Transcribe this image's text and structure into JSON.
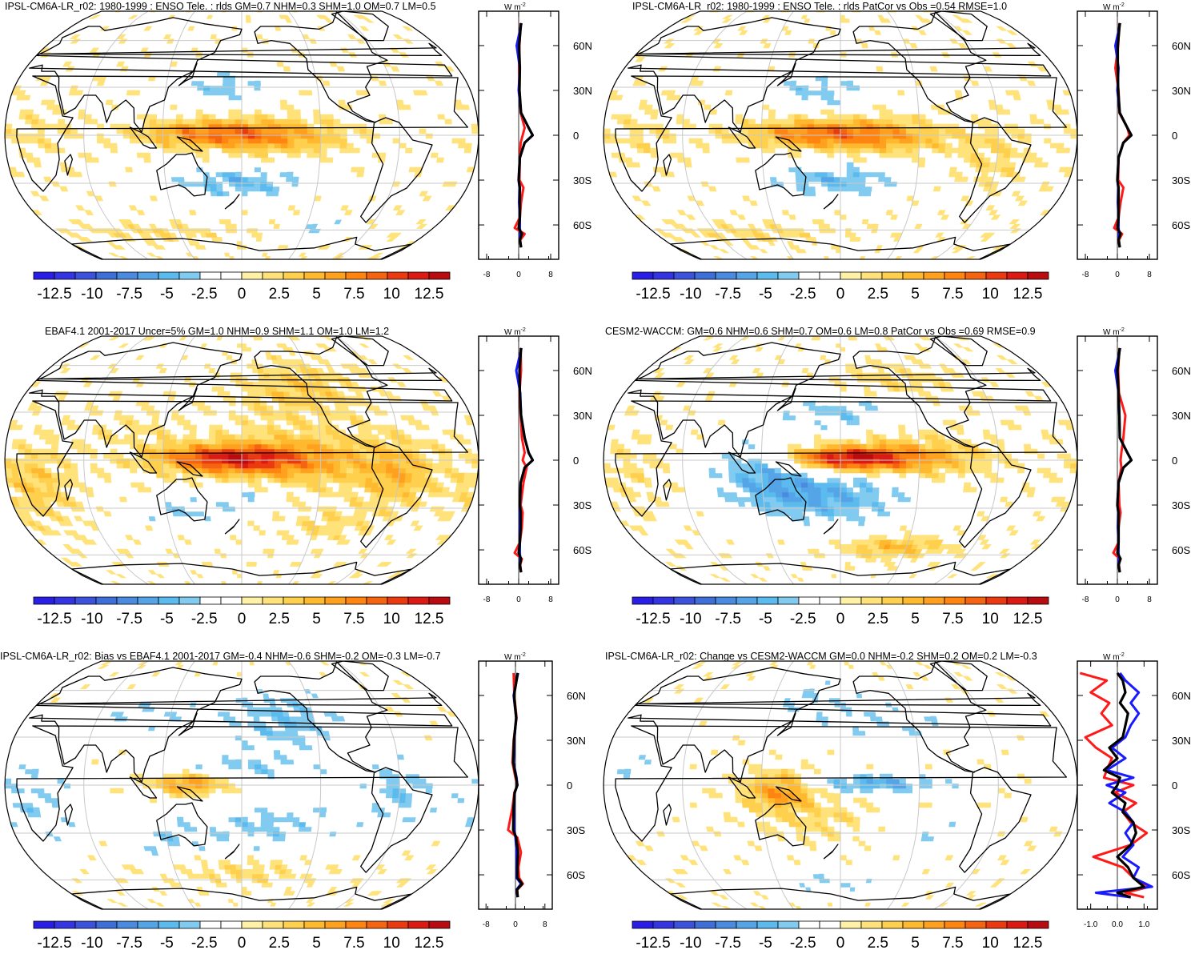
{
  "figure": {
    "lat_ticks": [
      "60N",
      "30N",
      "0",
      "30S",
      "60S"
    ],
    "lat_tick_values": [
      60,
      30,
      0,
      -30,
      -60
    ],
    "colorbar_labels": [
      "-12.5",
      "-10",
      "-7.5",
      "-5",
      "-2.5",
      "0",
      "2.5",
      "5",
      "7.5",
      "10",
      "12.5"
    ],
    "colorbar_colors": [
      "#2a1ee6",
      "#3434e2",
      "#3c52dc",
      "#3e6fd8",
      "#4a8ae0",
      "#55a4e8",
      "#5cbbee",
      "#82cbf0",
      "#ffffff",
      "#ffffff",
      "#fff2a6",
      "#ffe27a",
      "#ffd04e",
      "#ffb92e",
      "#ffa01e",
      "#ff8410",
      "#f56410",
      "#ec3a10",
      "#dc1a14",
      "#b80c10"
    ],
    "series_colors": {
      "red": "#ff1a1a",
      "blue": "#1a1aff",
      "black": "#000000"
    }
  },
  "panels": [
    {
      "title": "IPSL-CM6A-LR_r02: 1980-1999 : ENSO Tele. : rlds GM=0.7 NHM=0.3 SHM=1.0 OM=0.7 LM=0.5",
      "unit": "W m",
      "unit_exp": "-2",
      "profile_ticks": [
        "-8",
        "0",
        "8"
      ]
    },
    {
      "title": "IPSL-CM6A-LR_r02: 1980-1999 : ENSO Tele. : rlds PatCor vs Obs =0.54 RMSE=1.0",
      "unit": "W m",
      "unit_exp": "-2",
      "profile_ticks": [
        "-8",
        "0",
        "8"
      ]
    },
    {
      "title": "EBAF4.1 2001-2017 Uncer=5% GM=1.0 NHM=0.9 SHM=1.1 OM=1.0 LM=1.2",
      "unit": "W m",
      "unit_exp": "-2",
      "profile_ticks": [
        "-8",
        "0",
        "8"
      ]
    },
    {
      "title": "CESM2-WACCM: GM=0.6 NHM=0.6 SHM=0.7 OM=0.6 LM=0.8 PatCor vs Obs =0.69 RMSE=0.9",
      "unit": "W m",
      "unit_exp": "-2",
      "profile_ticks": [
        "-8",
        "0",
        "8"
      ]
    },
    {
      "title": "IPSL-CM6A-LR_r02: Bias vs EBAF4.1 2001-2017 GM=-0.4 NHM=-0.6 SHM=-0.2 OM=-0.3 LM=-0.7",
      "unit": "W m",
      "unit_exp": "-2",
      "profile_ticks": [
        "-8",
        "0",
        "8"
      ]
    },
    {
      "title": "IPSL-CM6A-LR_r02: Change vs CESM2-WACCM GM=0.0 NHM=-0.2 SHM=0.2 OM=0.2 LM=-0.3",
      "unit": "W m",
      "unit_exp": "-2",
      "profile_ticks": [
        "-1.0",
        "0.0",
        "1.0"
      ]
    }
  ],
  "chart_data": [
    {
      "type": "heatmap",
      "title": "IPSL-CM6A-LR_r02: 1980-1999 : ENSO Tele. : rlds GM=0.7 NHM=0.3 SHM=1.0 OM=0.7 LM=0.5",
      "colorbar": {
        "min": -13.75,
        "max": 13.75,
        "levels": [
          -12.5,
          -10,
          -7.5,
          -5,
          -2.5,
          0,
          2.5,
          5,
          7.5,
          10,
          12.5
        ]
      },
      "features": [
        {
          "lon": 155,
          "lat": 1,
          "amp": 6,
          "sx": 40,
          "sy": 6
        },
        {
          "lon": 210,
          "lat": -1,
          "amp": 4,
          "sx": 40,
          "sy": 8
        },
        {
          "lon": 175,
          "lat": -30,
          "amp": -4,
          "sx": 35,
          "sy": 7
        },
        {
          "lon": 165,
          "lat": 30,
          "amp": -3,
          "sx": 25,
          "sy": 7
        },
        {
          "lon": 255,
          "lat": -58,
          "amp": -2.5,
          "sx": 20,
          "sy": 4
        },
        {
          "lon": 100,
          "lat": -62,
          "amp": 2,
          "sx": 60,
          "sy": 5
        },
        {
          "lon": 25,
          "lat": 0,
          "amp": 1.5,
          "sx": 25,
          "sy": 15
        }
      ],
      "profile": {
        "lat": [
          75,
          60,
          45,
          30,
          15,
          5,
          0,
          -5,
          -15,
          -30,
          -35,
          -45,
          -55,
          -62,
          -66,
          -70,
          -75
        ],
        "red": [
          0.5,
          0.2,
          0.1,
          0.2,
          0.5,
          1.5,
          1.0,
          0.5,
          0.3,
          0.2,
          1.2,
          0.6,
          0.3,
          -1.0,
          1.5,
          0.4,
          0.6
        ],
        "blue": [
          0.7,
          -0.5,
          0.3,
          0.0,
          0.6,
          2.5,
          3.5,
          1.5,
          0.3,
          0.0,
          0.2,
          0.1,
          0.3,
          0.3,
          0.4,
          0.3,
          0.6
        ],
        "black": [
          0.6,
          0.1,
          0.3,
          0.2,
          0.6,
          2.5,
          3.5,
          1.5,
          0.3,
          0.0,
          0.3,
          0.3,
          0.3,
          0.0,
          0.8,
          0.3,
          0.6
        ],
        "xlim": [
          -10,
          10
        ]
      }
    },
    {
      "type": "heatmap",
      "title": "IPSL-CM6A-LR_r02: 1980-1999 : ENSO Tele. : rlds PatCor vs Obs =0.54 RMSE=1.0",
      "colorbar": {
        "min": -13.75,
        "max": 13.75,
        "levels": [
          -12.5,
          -10,
          -7.5,
          -5,
          -2.5,
          0,
          2.5,
          5,
          7.5,
          10,
          12.5
        ]
      },
      "features": [
        {
          "lon": 160,
          "lat": 1,
          "amp": 6,
          "sx": 40,
          "sy": 6
        },
        {
          "lon": 215,
          "lat": -1,
          "amp": 4,
          "sx": 40,
          "sy": 8
        },
        {
          "lon": 175,
          "lat": -28,
          "amp": -4,
          "sx": 35,
          "sy": 7
        },
        {
          "lon": 160,
          "lat": 28,
          "amp": -3,
          "sx": 25,
          "sy": 7
        },
        {
          "lon": 100,
          "lat": -62,
          "amp": 2,
          "sx": 60,
          "sy": 5
        },
        {
          "lon": 300,
          "lat": -15,
          "amp": 2,
          "sx": 20,
          "sy": 15
        },
        {
          "lon": 25,
          "lat": 0,
          "amp": 1.5,
          "sx": 25,
          "sy": 15
        }
      ],
      "profile": {
        "lat": [
          75,
          60,
          45,
          30,
          15,
          5,
          0,
          -5,
          -15,
          -30,
          -35,
          -45,
          -55,
          -62,
          -66,
          -70,
          -75
        ],
        "red": [
          0.5,
          0.2,
          -0.5,
          0.3,
          0.5,
          2.5,
          3.0,
          1.5,
          0.3,
          0.2,
          1.5,
          0.8,
          0.3,
          -0.8,
          1.2,
          0.4,
          0.6
        ],
        "blue": [
          0.7,
          -0.5,
          0.3,
          0.0,
          0.6,
          2.5,
          3.5,
          1.5,
          0.3,
          0.0,
          0.2,
          0.1,
          0.3,
          0.3,
          0.4,
          0.3,
          0.6
        ],
        "black": [
          0.6,
          0.1,
          0.1,
          0.2,
          0.6,
          2.5,
          3.5,
          1.5,
          0.3,
          0.0,
          0.3,
          0.3,
          0.3,
          0.0,
          0.8,
          0.3,
          0.6
        ],
        "xlim": [
          -10,
          10
        ]
      }
    },
    {
      "type": "heatmap",
      "title": "EBAF4.1 2001-2017 Uncer=5% GM=1.0 NHM=0.9 SHM=1.1 OM=1.0 LM=1.2",
      "colorbar": {
        "min": -13.75,
        "max": 13.75,
        "levels": [
          -12.5,
          -10,
          -7.5,
          -5,
          -2.5,
          0,
          2.5,
          5,
          7.5,
          10,
          12.5
        ]
      },
      "features": [
        {
          "lon": 170,
          "lat": 1,
          "amp": 9,
          "sx": 40,
          "sy": 6
        },
        {
          "lon": 225,
          "lat": 0,
          "amp": 4,
          "sx": 50,
          "sy": 14
        },
        {
          "lon": 230,
          "lat": 45,
          "amp": 3,
          "sx": 40,
          "sy": 14
        },
        {
          "lon": 180,
          "lat": -25,
          "amp": -2.5,
          "sx": 25,
          "sy": 7
        },
        {
          "lon": 130,
          "lat": -32,
          "amp": -2.5,
          "sx": 20,
          "sy": 6
        },
        {
          "lon": 300,
          "lat": -10,
          "amp": 3.5,
          "sx": 20,
          "sy": 15
        },
        {
          "lon": 20,
          "lat": -15,
          "amp": 3,
          "sx": 25,
          "sy": 20
        },
        {
          "lon": 250,
          "lat": -40,
          "amp": 2,
          "sx": 30,
          "sy": 8
        },
        {
          "lon": 100,
          "lat": 20,
          "amp": 1.5,
          "sx": 30,
          "sy": 10
        }
      ],
      "profile": {
        "lat": [
          75,
          60,
          45,
          30,
          15,
          5,
          0,
          -5,
          -15,
          -30,
          -35,
          -45,
          -55,
          -62,
          -66,
          -70,
          -75
        ],
        "red": [
          0.5,
          0.6,
          0.2,
          0.5,
          0.8,
          1.5,
          1.0,
          2.0,
          1.2,
          0.5,
          1.0,
          0.8,
          0.3,
          -1.0,
          0.8,
          0.4,
          0.6
        ],
        "blue": [
          0.7,
          -0.6,
          0.4,
          0.6,
          1.5,
          2.5,
          3.5,
          1.5,
          0.5,
          0.3,
          0.3,
          0.3,
          0.3,
          0.3,
          0.4,
          0.3,
          0.6
        ],
        "black": [
          0.6,
          0.2,
          0.3,
          0.6,
          1.5,
          2.5,
          3.5,
          1.5,
          0.5,
          0.3,
          0.5,
          0.5,
          0.3,
          0.0,
          0.6,
          0.3,
          0.6
        ],
        "xlim": [
          -10,
          10
        ]
      }
    },
    {
      "type": "heatmap",
      "title": "CESM2-WACCM: GM=0.6 NHM=0.6 SHM=0.7 OM=0.6 LM=0.8 PatCor vs Obs =0.69 RMSE=0.9",
      "colorbar": {
        "min": -13.75,
        "max": 13.75,
        "levels": [
          -12.5,
          -10,
          -7.5,
          -5,
          -2.5,
          0,
          2.5,
          5,
          7.5,
          10,
          12.5
        ]
      },
      "features": [
        {
          "lon": 185,
          "lat": 1,
          "amp": 10,
          "sx": 35,
          "sy": 5
        },
        {
          "lon": 235,
          "lat": 2,
          "amp": 4,
          "sx": 45,
          "sy": 10
        },
        {
          "lon": 165,
          "lat": -22,
          "amp": -5,
          "sx": 45,
          "sy": 12
        },
        {
          "lon": 120,
          "lat": -5,
          "amp": -3.5,
          "sx": 25,
          "sy": 12
        },
        {
          "lon": 180,
          "lat": 30,
          "amp": -3,
          "sx": 35,
          "sy": 8
        },
        {
          "lon": 230,
          "lat": -55,
          "amp": 4,
          "sx": 35,
          "sy": 5
        },
        {
          "lon": 230,
          "lat": 50,
          "amp": 2,
          "sx": 35,
          "sy": 10
        },
        {
          "lon": 20,
          "lat": -10,
          "amp": 1.5,
          "sx": 25,
          "sy": 20
        }
      ],
      "profile": {
        "lat": [
          75,
          60,
          45,
          30,
          15,
          5,
          0,
          -5,
          -15,
          -30,
          -35,
          -45,
          -55,
          -62,
          -66,
          -70,
          -75
        ],
        "red": [
          0.5,
          0.2,
          0.4,
          2.0,
          1.5,
          1.0,
          0.8,
          1.0,
          0.3,
          0.5,
          0.8,
          0.3,
          0.3,
          -1.0,
          0.6,
          0.4,
          0.6
        ],
        "blue": [
          0.7,
          -0.5,
          0.3,
          0.5,
          0.6,
          2.5,
          3.5,
          1.5,
          0.3,
          0.0,
          0.2,
          0.1,
          0.3,
          0.3,
          0.4,
          0.3,
          0.6
        ],
        "black": [
          0.6,
          0.0,
          0.3,
          0.5,
          0.6,
          2.5,
          3.5,
          1.5,
          0.3,
          0.0,
          0.3,
          0.3,
          0.3,
          0.0,
          0.8,
          0.3,
          0.6
        ],
        "xlim": [
          -10,
          10
        ]
      }
    },
    {
      "type": "heatmap",
      "title": "IPSL-CM6A-LR_r02: Bias vs EBAF4.1 2001-2017 GM=-0.4 NHM=-0.6 SHM=-0.2 OM=-0.3 LM=-0.7",
      "colorbar": {
        "min": -13.75,
        "max": 13.75,
        "levels": [
          -12.5,
          -10,
          -7.5,
          -5,
          -2.5,
          0,
          2.5,
          5,
          7.5,
          10,
          12.5
        ]
      },
      "features": [
        {
          "lon": 140,
          "lat": 1,
          "amp": 6,
          "sx": 20,
          "sy": 5
        },
        {
          "lon": 215,
          "lat": 40,
          "amp": -3.5,
          "sx": 35,
          "sy": 15
        },
        {
          "lon": 180,
          "lat": 10,
          "amp": -2.5,
          "sx": 40,
          "sy": 6
        },
        {
          "lon": 200,
          "lat": -25,
          "amp": -3,
          "sx": 40,
          "sy": 10
        },
        {
          "lon": 300,
          "lat": -5,
          "amp": -3,
          "sx": 20,
          "sy": 15
        },
        {
          "lon": 20,
          "lat": -10,
          "amp": -2.5,
          "sx": 25,
          "sy": 20
        },
        {
          "lon": 120,
          "lat": -35,
          "amp": -2.5,
          "sx": 20,
          "sy": 8
        },
        {
          "lon": 180,
          "lat": -55,
          "amp": 2,
          "sx": 50,
          "sy": 6
        },
        {
          "lon": 100,
          "lat": 45,
          "amp": -2,
          "sx": 35,
          "sy": 10
        }
      ],
      "profile": {
        "lat": [
          75,
          60,
          45,
          30,
          15,
          5,
          0,
          -5,
          -15,
          -30,
          -35,
          -45,
          -55,
          -62,
          -66,
          -70,
          -75
        ],
        "red": [
          -0.5,
          -0.3,
          0.3,
          -0.5,
          -0.8,
          0.0,
          0.5,
          -0.3,
          -0.8,
          -2.0,
          0.5,
          1.5,
          0.8,
          1.0,
          2.0,
          0.5,
          0.6
        ],
        "blue": [
          0.7,
          -0.5,
          0.2,
          -0.3,
          -0.5,
          0.3,
          0.5,
          -0.2,
          -0.4,
          -0.3,
          0.0,
          0.3,
          0.3,
          0.3,
          1.5,
          0.3,
          0.6
        ],
        "black": [
          0.6,
          -0.4,
          0.2,
          -0.4,
          -0.6,
          0.2,
          0.5,
          -0.2,
          -0.5,
          -0.6,
          0.2,
          0.7,
          0.5,
          0.5,
          1.8,
          0.4,
          0.6
        ],
        "xlim": [
          -10,
          10
        ]
      }
    },
    {
      "type": "heatmap",
      "title": "IPSL-CM6A-LR_r02: Change vs CESM2-WACCM GM=0.0 NHM=-0.2 SHM=0.2 OM=0.2 LM=-0.3",
      "colorbar": {
        "min": -13.75,
        "max": 13.75,
        "levels": [
          -12.5,
          -10,
          -7.5,
          -5,
          -2.5,
          0,
          2.5,
          5,
          7.5,
          10,
          12.5
        ]
      },
      "features": [
        {
          "lon": 135,
          "lat": -3,
          "amp": 6,
          "sx": 20,
          "sy": 8
        },
        {
          "lon": 205,
          "lat": 1,
          "amp": -5,
          "sx": 40,
          "sy": 4
        },
        {
          "lon": 165,
          "lat": -22,
          "amp": 2,
          "sx": 35,
          "sy": 10
        },
        {
          "lon": 170,
          "lat": -62,
          "amp": -2,
          "sx": 50,
          "sy": 5
        },
        {
          "lon": 220,
          "lat": 38,
          "amp": -2,
          "sx": 40,
          "sy": 10
        },
        {
          "lon": 250,
          "lat": -30,
          "amp": -2,
          "sx": 25,
          "sy": 8
        },
        {
          "lon": 150,
          "lat": 55,
          "amp": -2,
          "sx": 35,
          "sy": 10
        },
        {
          "lon": 20,
          "lat": 10,
          "amp": -1.5,
          "sx": 25,
          "sy": 20
        }
      ],
      "profile": {
        "lat": [
          75,
          70,
          62,
          55,
          48,
          40,
          32,
          25,
          18,
          10,
          5,
          0,
          -5,
          -12,
          -18,
          -25,
          -32,
          -40,
          -48,
          -55,
          -62,
          -68,
          -72,
          -75
        ],
        "red": [
          -1.4,
          -0.4,
          -1.0,
          -0.3,
          -0.6,
          -0.2,
          -1.2,
          -0.8,
          -0.2,
          -0.4,
          -0.5,
          0.6,
          -0.1,
          0.7,
          0.2,
          0.5,
          1.1,
          0.5,
          -0.9,
          0.2,
          0.6,
          1.2,
          0.3,
          1.0
        ],
        "blue": [
          0.1,
          0.3,
          0.8,
          0.5,
          0.8,
          0.5,
          0.3,
          -0.2,
          0.3,
          -0.4,
          0.6,
          -0.4,
          0.3,
          -0.3,
          0.3,
          0.6,
          0.3,
          0.6,
          0.2,
          0.8,
          0.6,
          1.3,
          -0.8,
          0.5
        ],
        "black": [
          0.0,
          0.2,
          0.3,
          0.1,
          0.4,
          0.3,
          0.2,
          -0.3,
          0.0,
          -0.5,
          0.1,
          0.0,
          -0.2,
          0.3,
          0.2,
          0.6,
          0.7,
          0.5,
          0.0,
          0.4,
          0.6,
          1.0,
          0.0,
          0.5
        ],
        "xlim": [
          -1.5,
          1.5
        ]
      }
    }
  ]
}
